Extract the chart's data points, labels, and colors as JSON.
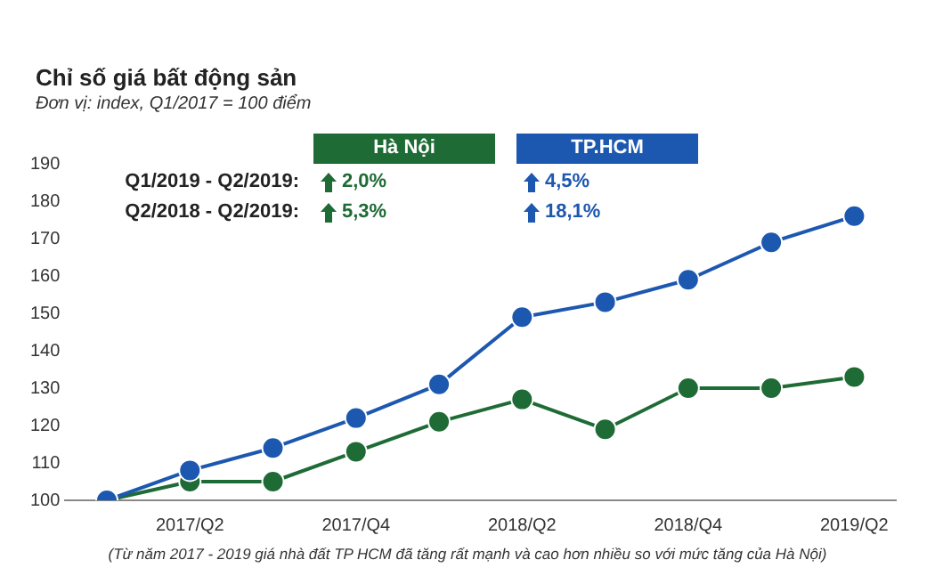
{
  "chart_data": {
    "type": "line",
    "title": "Chỉ số giá bất động sản",
    "subtitle": "Đơn vị: index, Q1/2017 = 100 điểm",
    "categories": [
      null,
      "2017/Q2",
      null,
      "2017/Q4",
      null,
      "2018/Q2",
      null,
      "2018/Q4",
      null,
      "2019/Q2"
    ],
    "series": [
      {
        "name": "Hà Nội",
        "color": "#1f6b35",
        "values": [
          100,
          105,
          105,
          113,
          121,
          127,
          119,
          130,
          130,
          133
        ]
      },
      {
        "name": "TP.HCM",
        "color": "#1d58b0",
        "values": [
          100,
          108,
          114,
          122,
          131,
          149,
          153,
          159,
          169,
          176
        ]
      }
    ],
    "ylim": [
      100,
      190
    ],
    "yticks": [
      100,
      110,
      120,
      130,
      140,
      150,
      160,
      170,
      180,
      190
    ],
    "grid": false,
    "legend": "top",
    "marker": "circle",
    "line_style": "solid",
    "annotations": [
      "Q1/2019 - Q2/2019:",
      "2,0%",
      "4,5%",
      "Q2/2018 - Q2/2019:",
      "5,3%",
      "18,1%",
      "(Từ năm 2017 - 2019 giá nhà đất TP HCM đã tăng rất mạnh và cao hơn nhiều so với mức tăng của Hà Nội)"
    ]
  }
}
